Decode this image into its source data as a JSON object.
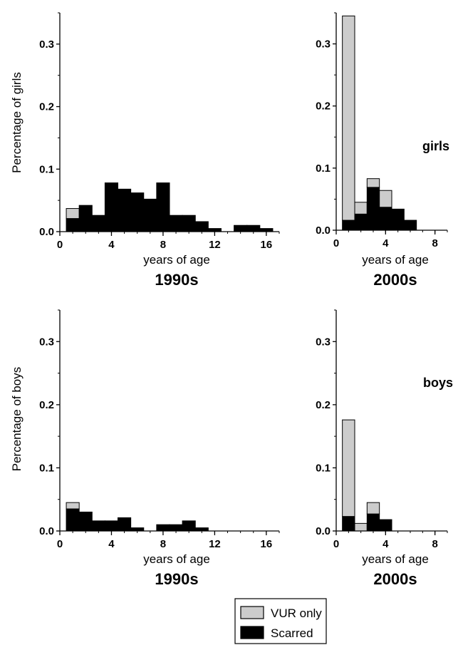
{
  "colors": {
    "vur_only": "#cccccc",
    "scarred": "#000000",
    "axis": "#000000"
  },
  "legend": {
    "position": "bottom-center",
    "entries": [
      {
        "label": "VUR only",
        "color_key": "vur_only"
      },
      {
        "label": "Scarred",
        "color_key": "scarred"
      }
    ]
  },
  "chart_data": [
    {
      "type": "bar",
      "panel": "girls-1990s",
      "ylabel": "Percentage of girls",
      "xlabel": "years of age",
      "decade": "1990s",
      "xlim": [
        0,
        17
      ],
      "ylim": [
        0,
        0.35
      ],
      "xticks": [
        "0",
        "4",
        "8",
        "12",
        "16"
      ],
      "xtick_values": [
        0,
        4,
        8,
        12,
        16
      ],
      "yticks": [
        "0.0",
        "0.1",
        "0.2",
        "0.3"
      ],
      "ytick_values": [
        0,
        0.1,
        0.2,
        0.3
      ],
      "bin_width": 1,
      "bin_start": [
        1,
        2,
        3,
        4,
        5,
        6,
        7,
        8,
        9,
        10,
        11,
        12,
        13,
        14,
        15,
        16
      ],
      "series": [
        {
          "name": "VUR only",
          "values": [
            0.016,
            0,
            0,
            0,
            0,
            0,
            0,
            0,
            0,
            0,
            0,
            0,
            0,
            0,
            0,
            0
          ]
        },
        {
          "name": "Scarred",
          "values": [
            0.021,
            0.042,
            0.026,
            0.078,
            0.068,
            0.062,
            0.052,
            0.078,
            0.026,
            0.026,
            0.016,
            0.005,
            0,
            0.01,
            0.01,
            0.005
          ]
        }
      ]
    },
    {
      "type": "bar",
      "panel": "girls-2000s",
      "ylabel": "",
      "xlabel": "years of age",
      "decade": "2000s",
      "side_label": "girls",
      "xlim": [
        0,
        9
      ],
      "ylim": [
        0,
        0.35
      ],
      "xticks": [
        "0",
        "4",
        "8"
      ],
      "xtick_values": [
        0,
        4,
        8
      ],
      "yticks": [
        "0.0",
        "0.1",
        "0.2",
        "0.3"
      ],
      "ytick_values": [
        0,
        0.1,
        0.2,
        0.3
      ],
      "bin_width": 1,
      "bin_start": [
        1,
        2,
        3,
        4,
        5,
        6
      ],
      "series": [
        {
          "name": "VUR only",
          "values": [
            0.329,
            0.019,
            0.014,
            0.027,
            0,
            0
          ]
        },
        {
          "name": "Scarred",
          "values": [
            0.016,
            0.026,
            0.069,
            0.037,
            0.034,
            0.016
          ]
        }
      ]
    },
    {
      "type": "bar",
      "panel": "boys-1990s",
      "ylabel": "Percentage of boys",
      "xlabel": "years of age",
      "decade": "1990s",
      "xlim": [
        0,
        17
      ],
      "ylim": [
        0,
        0.35
      ],
      "xticks": [
        "0",
        "4",
        "8",
        "12",
        "16"
      ],
      "xtick_values": [
        0,
        4,
        8,
        12,
        16
      ],
      "yticks": [
        "0.0",
        "0.1",
        "0.2",
        "0.3"
      ],
      "ytick_values": [
        0,
        0.1,
        0.2,
        0.3
      ],
      "bin_width": 1,
      "bin_start": [
        1,
        2,
        3,
        4,
        5,
        6,
        7,
        8,
        9,
        10,
        11,
        12,
        13,
        14,
        15,
        16
      ],
      "series": [
        {
          "name": "VUR only",
          "values": [
            0.01,
            0,
            0,
            0,
            0,
            0,
            0,
            0,
            0,
            0,
            0,
            0,
            0,
            0,
            0,
            0
          ]
        },
        {
          "name": "Scarred",
          "values": [
            0.035,
            0.03,
            0.016,
            0.016,
            0.021,
            0.005,
            0,
            0.01,
            0.01,
            0.016,
            0.005,
            0,
            0,
            0,
            0,
            0
          ]
        }
      ]
    },
    {
      "type": "bar",
      "panel": "boys-2000s",
      "ylabel": "",
      "xlabel": "years of age",
      "decade": "2000s",
      "side_label": "boys",
      "xlim": [
        0,
        9
      ],
      "ylim": [
        0,
        0.35
      ],
      "xticks": [
        "0",
        "4",
        "8"
      ],
      "xtick_values": [
        0,
        4,
        8
      ],
      "yticks": [
        "0.0",
        "0.1",
        "0.2",
        "0.3"
      ],
      "ytick_values": [
        0,
        0.1,
        0.2,
        0.3
      ],
      "bin_width": 1,
      "bin_start": [
        1,
        2,
        3,
        4
      ],
      "series": [
        {
          "name": "VUR only",
          "values": [
            0.153,
            0.012,
            0.018,
            0
          ]
        },
        {
          "name": "Scarred",
          "values": [
            0.023,
            0,
            0.027,
            0.018
          ]
        }
      ]
    }
  ]
}
